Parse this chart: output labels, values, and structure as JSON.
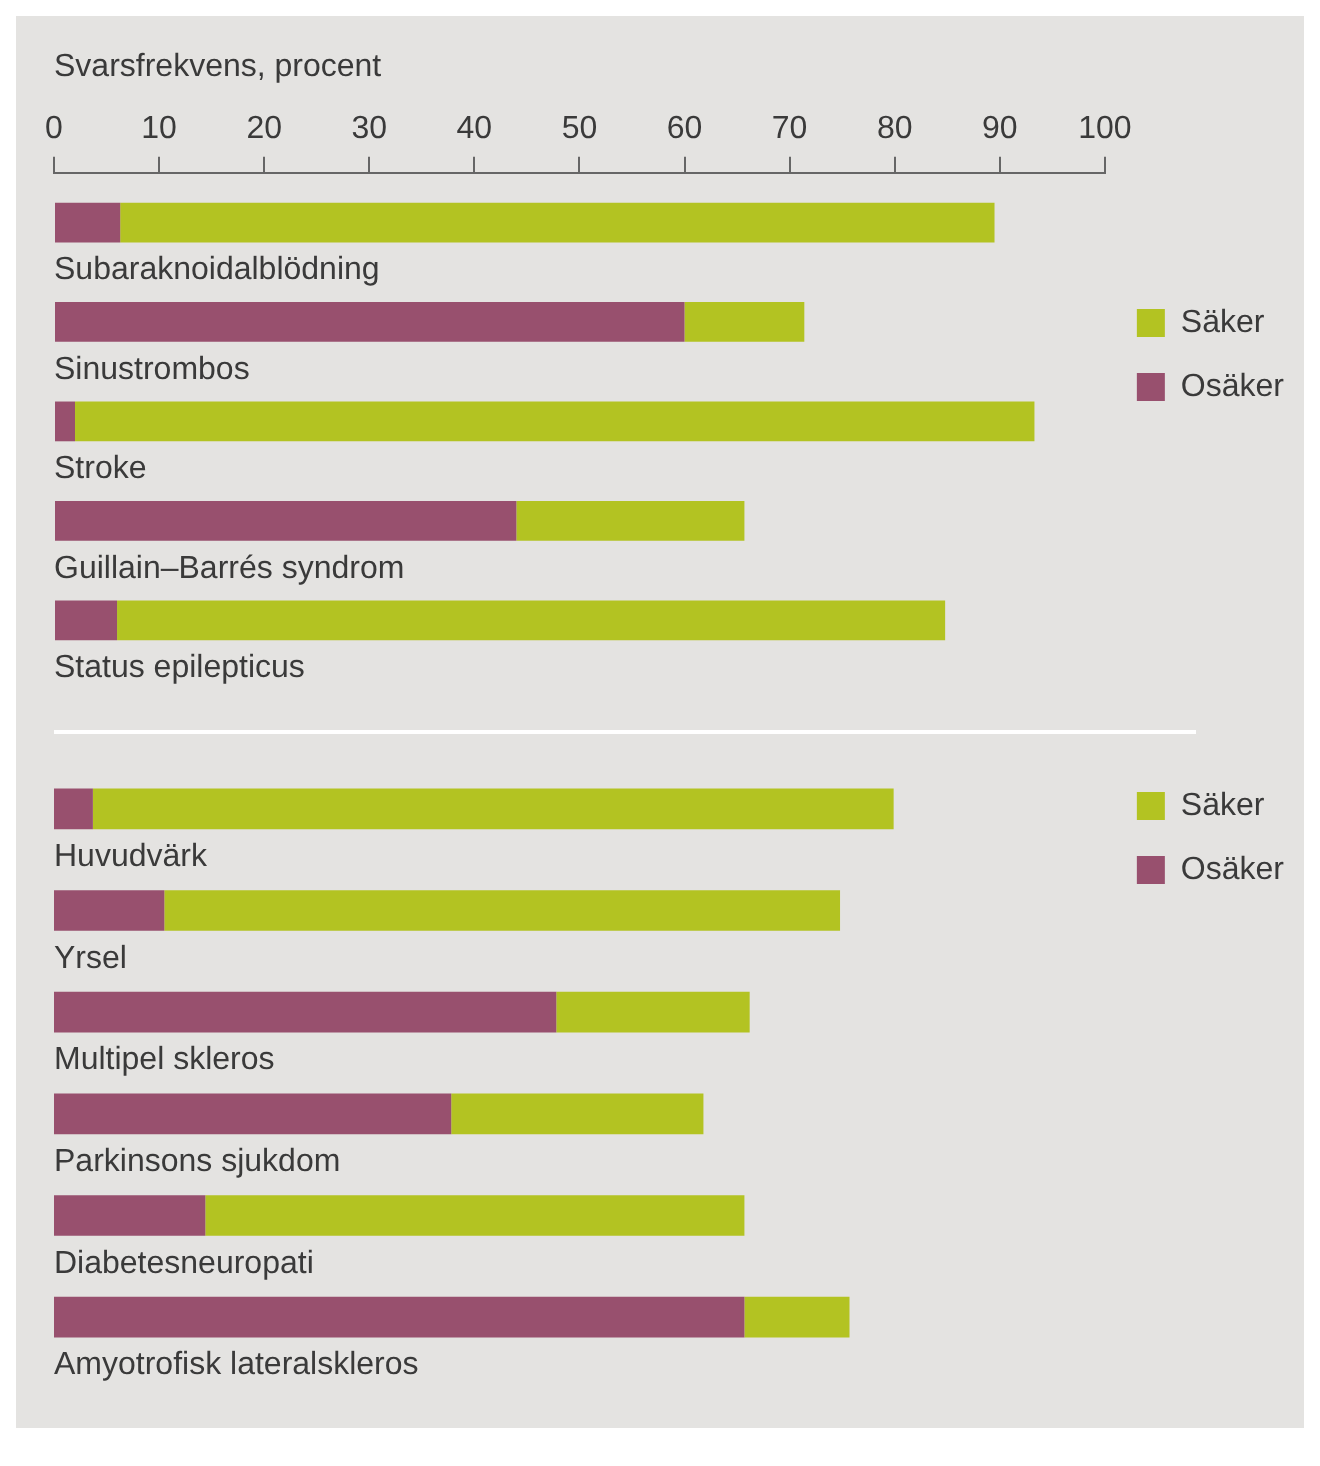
{
  "chart_data": [
    {
      "type": "bar",
      "orientation": "horizontal",
      "stacked": true,
      "xlabel": "Svarsfrekvens, procent",
      "categories": [
        "Subaraknoidalblödning",
        "Sinustrombos",
        "Stroke",
        "Guillain–Barrés syndrom",
        "Status epilepticus"
      ],
      "series": [
        {
          "name": "Osäker",
          "color": "#98506e",
          "values": [
            6.3,
            60,
            2,
            44,
            6
          ]
        },
        {
          "name": "Säker",
          "color": "#b3c322",
          "values": [
            83.2,
            11.4,
            91.3,
            21.7,
            78.8
          ]
        }
      ],
      "xlim": [
        0,
        100
      ],
      "xticks": [
        0,
        10,
        20,
        30,
        40,
        50,
        60,
        70,
        80,
        90,
        100
      ],
      "legend": "right"
    },
    {
      "type": "bar",
      "orientation": "horizontal",
      "stacked": true,
      "categories": [
        "Huvudvärk",
        "Yrsel",
        "Multipel skleros",
        "Parkinsons sjukdom",
        "Diabetesneuropati",
        "Amyotrofisk lateralskleros"
      ],
      "series": [
        {
          "name": "Osäker",
          "color": "#98506e",
          "values": [
            3.7,
            10.5,
            47.8,
            37.8,
            14.4,
            65.7
          ]
        },
        {
          "name": "Säker",
          "color": "#b3c322",
          "values": [
            76.2,
            64.3,
            18.4,
            24,
            51.3,
            10
          ]
        }
      ],
      "xlim": [
        0,
        100
      ],
      "xticks": [
        0,
        10,
        20,
        30,
        40,
        50,
        60,
        70,
        80,
        90,
        100
      ],
      "tick_labels": false,
      "legend": "top right"
    }
  ]
}
